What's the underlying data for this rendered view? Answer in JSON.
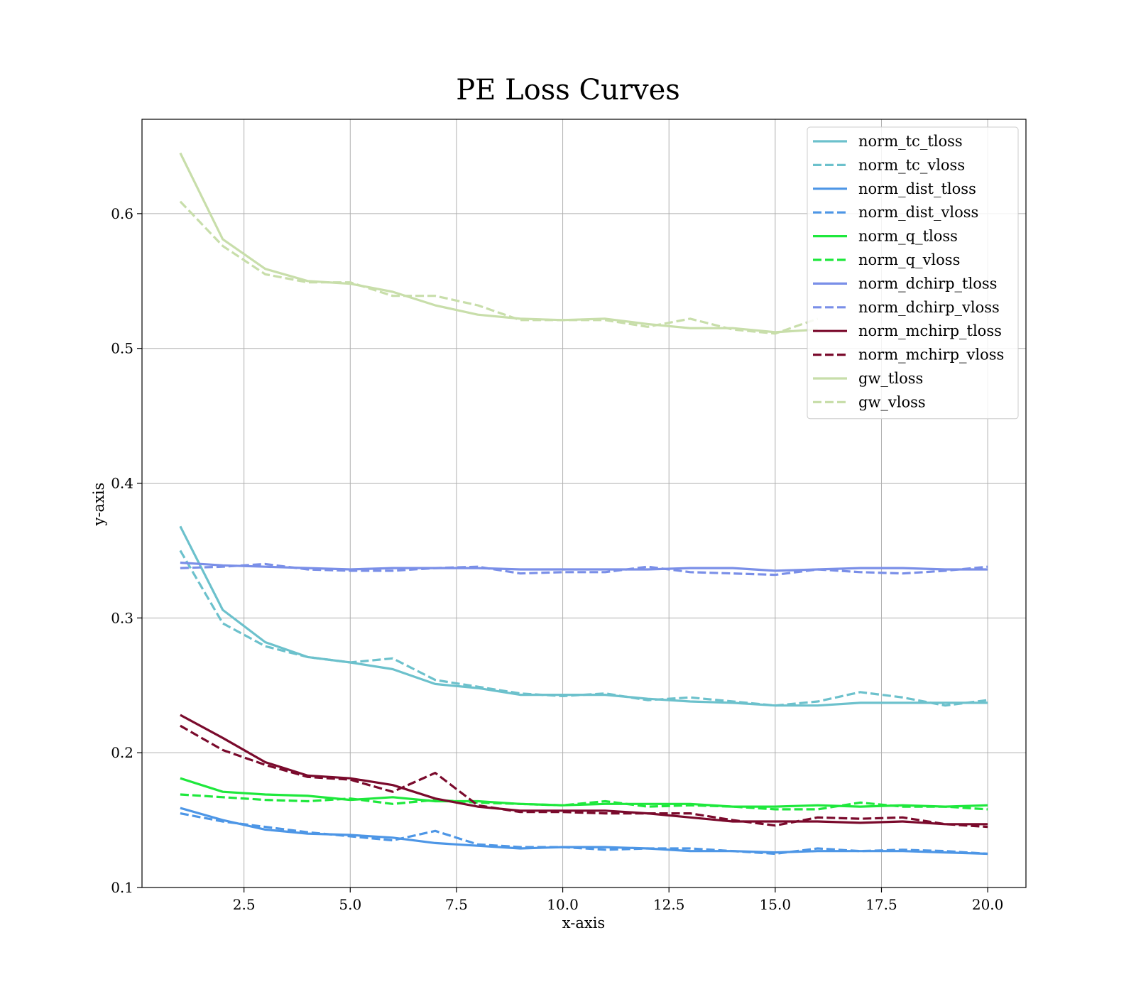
{
  "chart_data": {
    "type": "line",
    "title": "PE Loss Curves",
    "xlabel": "x-axis",
    "ylabel": "y-axis",
    "xlim": [
      0.1,
      20.9
    ],
    "ylim": [
      0.1,
      0.67
    ],
    "xticks": [
      "2.5",
      "5.0",
      "7.5",
      "10.0",
      "12.5",
      "15.0",
      "17.5",
      "20.0"
    ],
    "yticks": [
      "0.1",
      "0.2",
      "0.3",
      "0.4",
      "0.5",
      "0.6"
    ],
    "grid": true,
    "legend_position": "top-right",
    "x": [
      1,
      2,
      3,
      4,
      5,
      6,
      7,
      8,
      9,
      10,
      11,
      12,
      13,
      14,
      15,
      16,
      17,
      18,
      19,
      20
    ],
    "series": [
      {
        "name": "norm_tc_tloss",
        "color": "#6cc1cc",
        "style": "solid",
        "values": [
          0.368,
          0.306,
          0.282,
          0.271,
          0.267,
          0.262,
          0.251,
          0.248,
          0.243,
          0.243,
          0.243,
          0.24,
          0.238,
          0.237,
          0.235,
          0.235,
          0.237,
          0.237,
          0.237,
          0.237
        ]
      },
      {
        "name": "norm_tc_vloss",
        "color": "#6cc1cc",
        "style": "dashed",
        "values": [
          0.35,
          0.296,
          0.279,
          0.271,
          0.267,
          0.27,
          0.254,
          0.249,
          0.244,
          0.242,
          0.244,
          0.239,
          0.241,
          0.238,
          0.235,
          0.238,
          0.245,
          0.241,
          0.235,
          0.239
        ]
      },
      {
        "name": "norm_dist_tloss",
        "color": "#4d96e6",
        "style": "solid",
        "values": [
          0.159,
          0.15,
          0.143,
          0.14,
          0.139,
          0.137,
          0.133,
          0.131,
          0.129,
          0.13,
          0.13,
          0.129,
          0.127,
          0.127,
          0.126,
          0.127,
          0.127,
          0.127,
          0.126,
          0.125
        ]
      },
      {
        "name": "norm_dist_vloss",
        "color": "#4d96e6",
        "style": "dashed",
        "values": [
          0.155,
          0.149,
          0.145,
          0.141,
          0.138,
          0.135,
          0.142,
          0.132,
          0.13,
          0.13,
          0.128,
          0.129,
          0.129,
          0.127,
          0.125,
          0.129,
          0.127,
          0.128,
          0.127,
          0.125
        ]
      },
      {
        "name": "norm_q_tloss",
        "color": "#1ee83c",
        "style": "solid",
        "values": [
          0.181,
          0.171,
          0.169,
          0.168,
          0.165,
          0.167,
          0.164,
          0.164,
          0.162,
          0.161,
          0.162,
          0.162,
          0.162,
          0.16,
          0.16,
          0.161,
          0.16,
          0.161,
          0.16,
          0.161
        ]
      },
      {
        "name": "norm_q_vloss",
        "color": "#1ee83c",
        "style": "dashed",
        "values": [
          0.169,
          0.167,
          0.165,
          0.164,
          0.166,
          0.162,
          0.165,
          0.163,
          0.162,
          0.161,
          0.164,
          0.16,
          0.161,
          0.16,
          0.158,
          0.158,
          0.163,
          0.16,
          0.16,
          0.158
        ]
      },
      {
        "name": "norm_dchirp_tloss",
        "color": "#7a8fe8",
        "style": "solid",
        "values": [
          0.341,
          0.339,
          0.338,
          0.337,
          0.336,
          0.337,
          0.337,
          0.337,
          0.336,
          0.336,
          0.336,
          0.336,
          0.337,
          0.337,
          0.335,
          0.336,
          0.337,
          0.337,
          0.336,
          0.336
        ]
      },
      {
        "name": "norm_dchirp_vloss",
        "color": "#7a8fe8",
        "style": "dashed",
        "values": [
          0.337,
          0.338,
          0.34,
          0.336,
          0.335,
          0.335,
          0.337,
          0.338,
          0.333,
          0.334,
          0.334,
          0.338,
          0.334,
          0.333,
          0.332,
          0.336,
          0.334,
          0.333,
          0.335,
          0.338
        ]
      },
      {
        "name": "norm_mchirp_tloss",
        "color": "#7a0a2c",
        "style": "solid",
        "values": [
          0.228,
          0.211,
          0.193,
          0.183,
          0.181,
          0.176,
          0.166,
          0.16,
          0.157,
          0.157,
          0.157,
          0.155,
          0.152,
          0.149,
          0.149,
          0.149,
          0.148,
          0.149,
          0.147,
          0.147
        ]
      },
      {
        "name": "norm_mchirp_vloss",
        "color": "#7a0a2c",
        "style": "dashed",
        "values": [
          0.22,
          0.202,
          0.191,
          0.182,
          0.18,
          0.171,
          0.185,
          0.161,
          0.156,
          0.156,
          0.155,
          0.155,
          0.155,
          0.15,
          0.146,
          0.152,
          0.151,
          0.152,
          0.147,
          0.145
        ]
      },
      {
        "name": "gw_tloss",
        "color": "#c8deaa",
        "style": "solid",
        "values": [
          0.645,
          0.581,
          0.559,
          0.55,
          0.548,
          0.542,
          0.532,
          0.525,
          0.522,
          0.521,
          0.522,
          0.518,
          0.515,
          0.515,
          0.512,
          0.514,
          null,
          null,
          null,
          null
        ]
      },
      {
        "name": "gw_vloss",
        "color": "#c8deaa",
        "style": "dashed",
        "values": [
          0.609,
          0.576,
          0.555,
          0.549,
          0.549,
          0.539,
          0.539,
          0.532,
          0.521,
          0.521,
          0.521,
          0.516,
          0.522,
          0.514,
          0.511,
          0.522,
          null,
          null,
          null,
          null
        ]
      }
    ]
  }
}
